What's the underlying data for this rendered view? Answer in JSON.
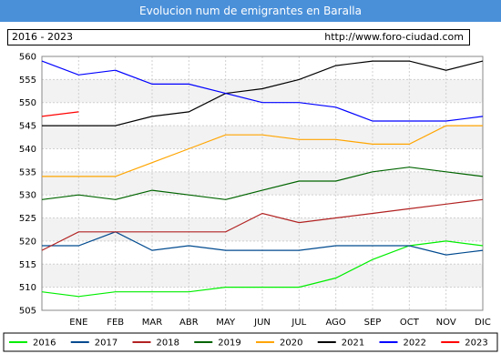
{
  "header": {
    "title": "Evolucion num de emigrantes en Baralla"
  },
  "info": {
    "period": "2016 - 2023",
    "url": "http://www.foro-ciudad.com"
  },
  "colors": {
    "title_bg": "#4a90d9",
    "grid": "#d0d0d0",
    "band": "#f2f2f2"
  },
  "chart_data": {
    "type": "line",
    "title": "Evolucion num de emigrantes en Baralla",
    "x_categories": [
      "",
      "ENE",
      "FEB",
      "MAR",
      "ABR",
      "MAY",
      "JUN",
      "JUL",
      "AGO",
      "SEP",
      "OCT",
      "NOV",
      "DIC"
    ],
    "ylim": [
      505,
      560
    ],
    "y_ticks": [
      505,
      510,
      515,
      520,
      525,
      530,
      535,
      540,
      545,
      550,
      555,
      560
    ],
    "grid": true,
    "legend_position": "bottom",
    "series": [
      {
        "name": "2016",
        "color": "#00ee00",
        "values": [
          509,
          508,
          509,
          509,
          509,
          510,
          510,
          510,
          512,
          516,
          519,
          520,
          519
        ]
      },
      {
        "name": "2017",
        "color": "#004a8f",
        "values": [
          519,
          519,
          522,
          518,
          519,
          518,
          518,
          518,
          519,
          519,
          519,
          517,
          518
        ]
      },
      {
        "name": "2018",
        "color": "#b22222",
        "values": [
          518,
          522,
          522,
          522,
          522,
          522,
          526,
          524,
          525,
          526,
          527,
          528,
          529
        ]
      },
      {
        "name": "2019",
        "color": "#006400",
        "values": [
          529,
          530,
          529,
          531,
          530,
          529,
          531,
          533,
          533,
          535,
          536,
          535,
          534
        ]
      },
      {
        "name": "2020",
        "color": "#ffa500",
        "values": [
          534,
          534,
          534,
          537,
          540,
          543,
          543,
          542,
          542,
          541,
          541,
          545,
          545
        ]
      },
      {
        "name": "2021",
        "color": "#000000",
        "values": [
          545,
          545,
          545,
          547,
          548,
          552,
          553,
          555,
          558,
          559,
          559,
          557,
          559
        ]
      },
      {
        "name": "2022",
        "color": "#0000ff",
        "values": [
          559,
          556,
          557,
          554,
          554,
          552,
          550,
          550,
          549,
          546,
          546,
          546,
          547
        ]
      },
      {
        "name": "2023",
        "color": "#ff0000",
        "values": [
          547,
          548
        ]
      }
    ]
  }
}
